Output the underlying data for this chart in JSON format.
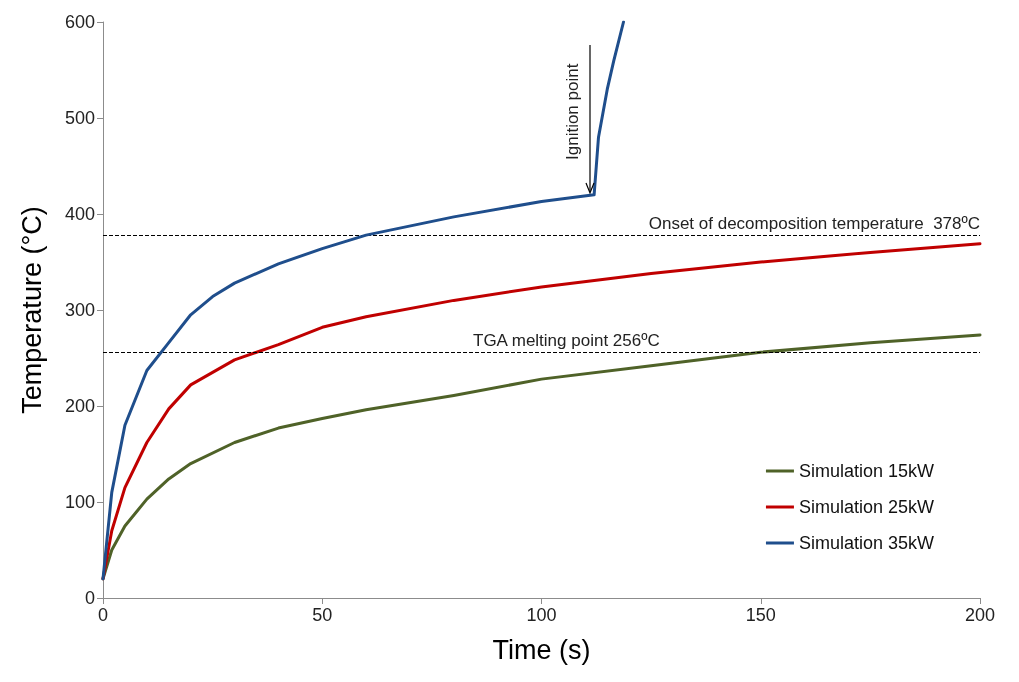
{
  "chart_data": {
    "type": "line",
    "xlabel": "Time (s)",
    "ylabel": "Temperature (°C)",
    "xlim": [
      0,
      200
    ],
    "xticks": [
      0,
      50,
      100,
      150,
      200
    ],
    "ylim": [
      0,
      600
    ],
    "yticks": [
      0,
      100,
      200,
      300,
      400,
      500,
      600
    ],
    "grid": false,
    "legend": "bottom right",
    "marker": "none",
    "line_style": "solid",
    "series": [
      {
        "name": "Simulation 15kW",
        "color": "#4f6228",
        "x": [
          0,
          2,
          5,
          10,
          15,
          20,
          30,
          40,
          50,
          60,
          80,
          100,
          125,
          150,
          175,
          200
        ],
        "values": [
          20,
          50,
          75,
          103,
          124,
          140,
          162,
          177,
          187,
          196,
          211,
          228,
          242,
          256,
          266,
          274
        ]
      },
      {
        "name": "Simulation 25kW",
        "color": "#c00000",
        "x": [
          0,
          2,
          5,
          10,
          15,
          20,
          30,
          40,
          50,
          60,
          80,
          100,
          125,
          150,
          175,
          200
        ],
        "values": [
          20,
          70,
          115,
          162,
          197,
          222,
          248,
          264,
          282,
          293,
          310,
          324,
          338,
          350,
          360,
          369
        ]
      },
      {
        "name": "Simulation 35kW",
        "color": "#1f4e8c",
        "x": [
          0,
          2,
          5,
          10,
          15,
          20,
          25,
          30,
          40,
          50,
          60,
          80,
          100,
          112,
          112.5,
          113,
          114,
          115,
          116.5,
          118.7
        ],
        "values": [
          20,
          110,
          180,
          237,
          266,
          295,
          314,
          328,
          348,
          364,
          378,
          397,
          413,
          420,
          450,
          480,
          505,
          530,
          560,
          600
        ]
      }
    ],
    "ref_lines": [
      {
        "axis": "y",
        "value": 378,
        "label": "Onset of decomposition temperature  378ºC",
        "color": "#000000",
        "line_style": "dashed"
      },
      {
        "axis": "y",
        "value": 256,
        "label": "TGA melting point 256ºC",
        "color": "#000000",
        "line_style": "dashed"
      }
    ],
    "annotations": [
      {
        "text": "Ignition point",
        "x": 111,
        "y": 420
      }
    ]
  }
}
